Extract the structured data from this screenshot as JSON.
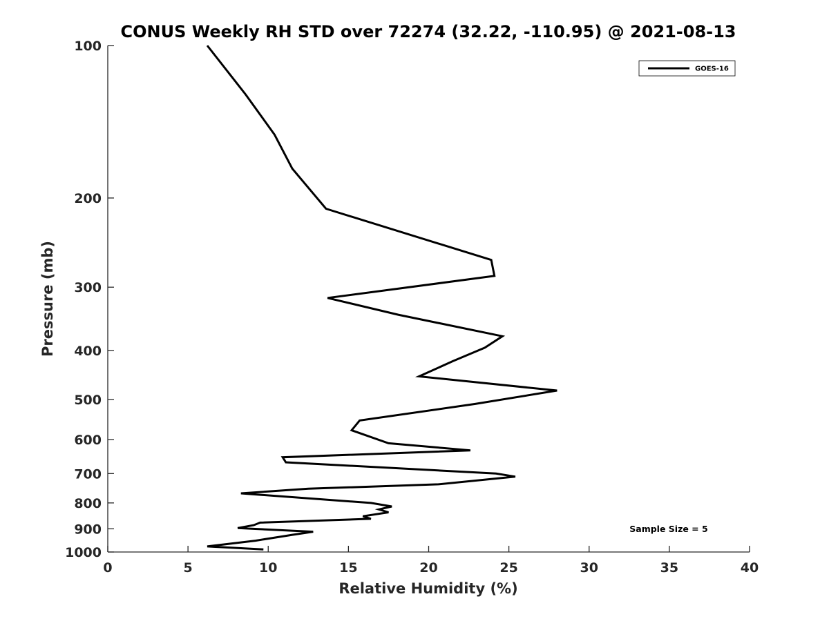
{
  "chart_data": {
    "type": "line",
    "title": "CONUS Weekly RH STD over 72274 (32.22, -110.95) @ 2021-08-13",
    "xlabel": "Relative Humidity (%)",
    "ylabel": "Pressure (mb)",
    "xlim": [
      0,
      40
    ],
    "ylim": [
      100,
      1000
    ],
    "y_scale": "log",
    "y_reversed": true,
    "x_ticks": [
      0,
      5,
      10,
      15,
      20,
      25,
      30,
      35,
      40
    ],
    "x_tick_labels": [
      "0",
      "5",
      "10",
      "15",
      "20",
      "25",
      "30",
      "35",
      "40"
    ],
    "y_ticks": [
      100,
      200,
      300,
      400,
      500,
      600,
      700,
      800,
      900,
      1000
    ],
    "y_tick_labels": [
      "100",
      "200",
      "300",
      "400",
      "500",
      "600",
      "700",
      "800",
      "900",
      "1000"
    ],
    "grid": false,
    "legend_position": "top-right",
    "annotation": "Sample Size = 5",
    "color": "#000000",
    "series": [
      {
        "name": "GOES-16",
        "values": [
          [
            6.2,
            100
          ],
          [
            8.6,
            125
          ],
          [
            10.4,
            150
          ],
          [
            11.5,
            175
          ],
          [
            13.6,
            210
          ],
          [
            23.9,
            265
          ],
          [
            24.1,
            285
          ],
          [
            13.7,
            315
          ],
          [
            18.1,
            340
          ],
          [
            24.6,
            375
          ],
          [
            23.5,
            395
          ],
          [
            21.5,
            420
          ],
          [
            19.4,
            450
          ],
          [
            28.0,
            480
          ],
          [
            22.9,
            510
          ],
          [
            15.7,
            550
          ],
          [
            15.2,
            575
          ],
          [
            17.5,
            610
          ],
          [
            22.6,
            630
          ],
          [
            10.9,
            650
          ],
          [
            11.1,
            665
          ],
          [
            24.2,
            700
          ],
          [
            25.4,
            710
          ],
          [
            20.6,
            735
          ],
          [
            12.5,
            750
          ],
          [
            8.3,
            766
          ],
          [
            16.4,
            800
          ],
          [
            17.7,
            813
          ],
          [
            16.9,
            824
          ],
          [
            17.5,
            835
          ],
          [
            15.9,
            850
          ],
          [
            16.4,
            860
          ],
          [
            9.5,
            875
          ],
          [
            9.1,
            885
          ],
          [
            8.1,
            897
          ],
          [
            12.8,
            912
          ],
          [
            11.5,
            925
          ],
          [
            9.2,
            950
          ],
          [
            6.2,
            975
          ],
          [
            9.7,
            988
          ]
        ]
      }
    ]
  }
}
